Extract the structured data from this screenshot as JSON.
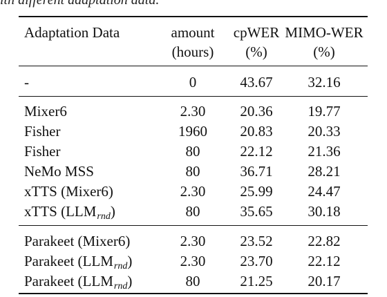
{
  "caption": "ith different adaptation data.",
  "table": {
    "headers": {
      "col0": "Adaptation Data",
      "col1_line1": "amount",
      "col1_line2": "(hours)",
      "col2_line1": "cpWER",
      "col2_line2": "(%)",
      "col3_line1": "MIMO-WER",
      "col3_line2": "(%)"
    },
    "groups": [
      {
        "rows": [
          {
            "name": "-",
            "sub": "",
            "suffix": "",
            "amount": "0",
            "cpwer": "43.67",
            "mimo": "32.16"
          }
        ]
      },
      {
        "rows": [
          {
            "name": "Mixer6",
            "sub": "",
            "suffix": "",
            "amount": "2.30",
            "cpwer": "20.36",
            "mimo": "19.77"
          },
          {
            "name": "Fisher",
            "sub": "",
            "suffix": "",
            "amount": "1960",
            "cpwer": "20.83",
            "mimo": "20.33"
          },
          {
            "name": "Fisher",
            "sub": "",
            "suffix": "",
            "amount": "80",
            "cpwer": "22.12",
            "mimo": "21.36"
          },
          {
            "name": "NeMo MSS",
            "sub": "",
            "suffix": "",
            "amount": "80",
            "cpwer": "36.71",
            "mimo": "28.21"
          },
          {
            "name": "xTTS (Mixer6)",
            "sub": "",
            "suffix": "",
            "amount": "2.30",
            "cpwer": "25.99",
            "mimo": "24.47"
          },
          {
            "name": "xTTS (LLM",
            "sub": "rnd",
            "suffix": ")",
            "amount": "80",
            "cpwer": "35.65",
            "mimo": "30.18"
          }
        ]
      },
      {
        "rows": [
          {
            "name": "Parakeet (Mixer6)",
            "sub": "",
            "suffix": "",
            "amount": "2.30",
            "cpwer": "23.52",
            "mimo": "22.82"
          },
          {
            "name": "Parakeet (LLM",
            "sub": "rnd",
            "suffix": ")",
            "amount": "2.30",
            "cpwer": "23.70",
            "mimo": "22.12"
          },
          {
            "name": "Parakeet (LLM",
            "sub": "rnd",
            "suffix": ")",
            "amount": "80",
            "cpwer": "21.25",
            "mimo": "20.17"
          }
        ]
      }
    ]
  }
}
